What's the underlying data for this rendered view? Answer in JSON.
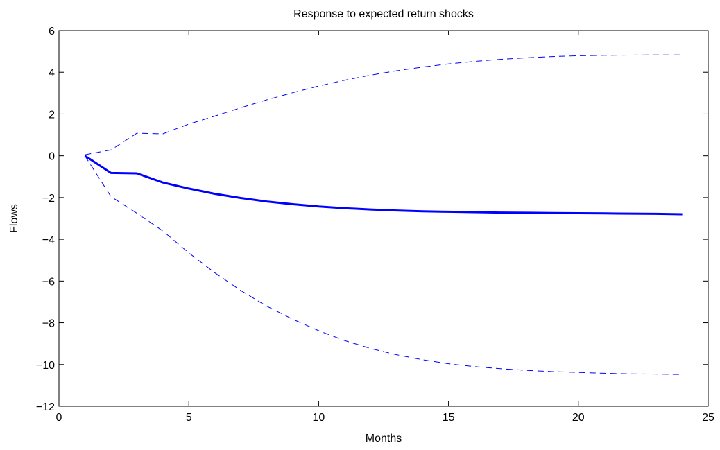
{
  "chart_data": {
    "type": "line",
    "title": "Response to expected return shocks",
    "xlabel": "Months",
    "ylabel": "Flows",
    "xlim": [
      0,
      25
    ],
    "ylim": [
      -12,
      6
    ],
    "xticks": [
      0,
      5,
      10,
      15,
      20,
      25
    ],
    "yticks": [
      -12,
      -10,
      -8,
      -6,
      -4,
      -2,
      0,
      2,
      4,
      6
    ],
    "grid": false,
    "colors": {
      "series": "#0000ff",
      "axes": "#000000"
    },
    "x": [
      1,
      2,
      3,
      4,
      5,
      6,
      7,
      8,
      9,
      10,
      11,
      12,
      13,
      14,
      15,
      16,
      17,
      18,
      19,
      20,
      21,
      22,
      23,
      24
    ],
    "series": [
      {
        "style": "solid",
        "values": [
          0.0,
          -0.82,
          -0.84,
          -1.28,
          -1.57,
          -1.82,
          -2.02,
          -2.19,
          -2.32,
          -2.43,
          -2.51,
          -2.57,
          -2.62,
          -2.66,
          -2.68,
          -2.7,
          -2.72,
          -2.73,
          -2.74,
          -2.75,
          -2.76,
          -2.77,
          -2.78,
          -2.8
        ]
      },
      {
        "style": "dashed",
        "values": [
          0.05,
          0.28,
          1.08,
          1.05,
          1.52,
          1.9,
          2.3,
          2.68,
          3.02,
          3.34,
          3.62,
          3.86,
          4.07,
          4.25,
          4.4,
          4.52,
          4.62,
          4.69,
          4.75,
          4.79,
          4.81,
          4.82,
          4.83,
          4.83
        ]
      },
      {
        "style": "dashed",
        "values": [
          0.0,
          -1.95,
          -2.75,
          -3.6,
          -4.65,
          -5.6,
          -6.45,
          -7.2,
          -7.83,
          -8.38,
          -8.85,
          -9.23,
          -9.53,
          -9.77,
          -9.96,
          -10.1,
          -10.2,
          -10.28,
          -10.34,
          -10.38,
          -10.42,
          -10.45,
          -10.46,
          -10.48
        ]
      }
    ]
  }
}
